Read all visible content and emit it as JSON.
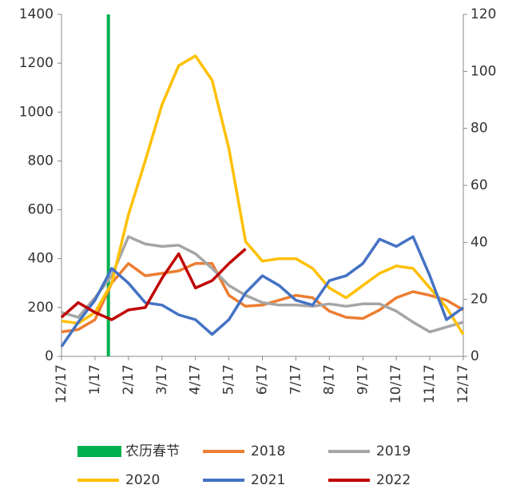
{
  "chart_data": {
    "type": "line",
    "x": [
      0,
      0.5,
      1,
      1.5,
      2,
      2.5,
      3,
      3.5,
      4,
      4.5,
      5,
      5.5,
      6,
      6.5,
      7,
      7.5,
      8,
      8.5,
      9,
      9.5,
      10,
      10.5,
      11,
      11.5,
      12
    ],
    "xlim": [
      0,
      12
    ],
    "xticks": [
      {
        "value": 0,
        "label": "12/17"
      },
      {
        "value": 1,
        "label": "1/17"
      },
      {
        "value": 2,
        "label": "2/17"
      },
      {
        "value": 3,
        "label": "3/17"
      },
      {
        "value": 4,
        "label": "4/17"
      },
      {
        "value": 5,
        "label": "5/17"
      },
      {
        "value": 6,
        "label": "6/17"
      },
      {
        "value": 7,
        "label": "7/17"
      },
      {
        "value": 8,
        "label": "8/17"
      },
      {
        "value": 9,
        "label": "9/17"
      },
      {
        "value": 10,
        "label": "10/17"
      },
      {
        "value": 11,
        "label": "11/17"
      },
      {
        "value": 12,
        "label": "12/17"
      }
    ],
    "ylim": [
      0,
      1400
    ],
    "yticks": [
      0,
      200,
      400,
      600,
      800,
      1000,
      1200,
      1400
    ],
    "y2lim": [
      0,
      120
    ],
    "y2ticks": [
      0,
      20,
      40,
      60,
      80,
      100,
      120
    ],
    "event": {
      "name": "农历春节",
      "color": "#00b050",
      "x": 1.4
    },
    "series": [
      {
        "name": "2018",
        "color": "#ed7d31",
        "values": [
          100,
          110,
          150,
          300,
          380,
          330,
          340,
          350,
          380,
          380,
          250,
          205,
          210,
          230,
          250,
          240,
          185,
          160,
          155,
          190,
          240,
          265,
          250,
          230,
          190
        ]
      },
      {
        "name": "2019",
        "color": "#a5a5a5",
        "values": [
          180,
          160,
          240,
          330,
          490,
          460,
          450,
          455,
          420,
          360,
          290,
          250,
          220,
          210,
          210,
          205,
          215,
          205,
          215,
          215,
          185,
          140,
          100,
          120,
          140
        ]
      },
      {
        "name": "2020",
        "color": "#ffc000",
        "values": [
          145,
          135,
          180,
          300,
          580,
          800,
          1030,
          1190,
          1230,
          1130,
          850,
          470,
          390,
          400,
          400,
          360,
          280,
          240,
          290,
          340,
          370,
          360,
          280,
          200,
          90
        ]
      },
      {
        "name": "2021",
        "color": "#4472c4",
        "values": [
          40,
          140,
          230,
          360,
          300,
          220,
          210,
          170,
          150,
          90,
          150,
          260,
          330,
          290,
          230,
          210,
          310,
          330,
          380,
          480,
          450,
          490,
          330,
          150,
          200
        ]
      },
      {
        "name": "2022",
        "color": "#c00000",
        "values": [
          160,
          220,
          180,
          150,
          190,
          200,
          320,
          420,
          280,
          310,
          380,
          440,
          null,
          null,
          null,
          null,
          null,
          null,
          null,
          null,
          null,
          null,
          null,
          null,
          null
        ]
      }
    ]
  }
}
